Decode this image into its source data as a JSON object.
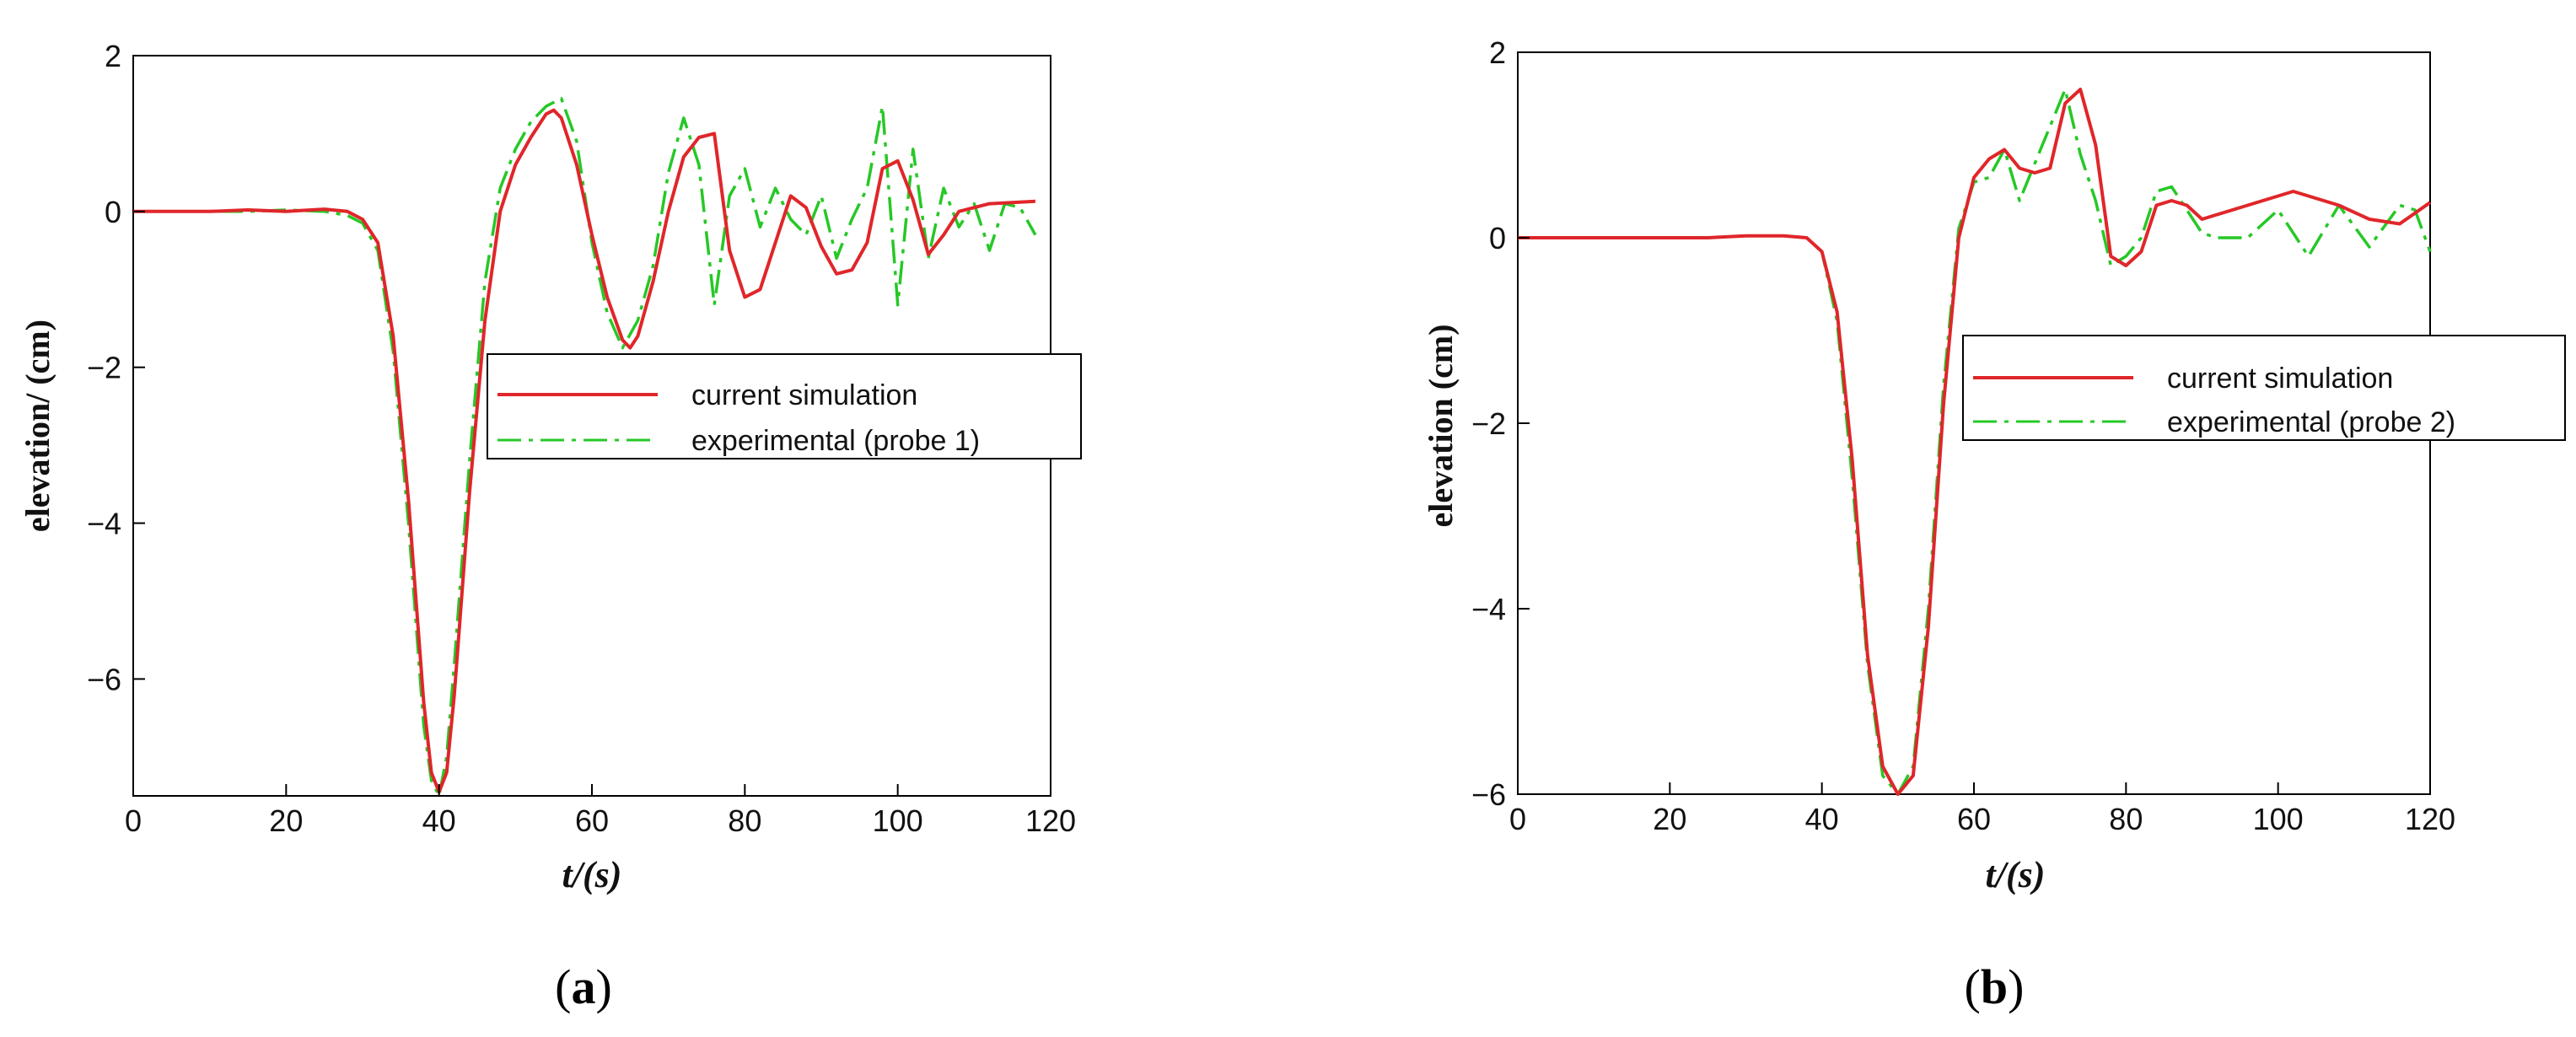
{
  "chart_data": [
    {
      "type": "line",
      "panel_label": "a",
      "xlabel": "t/(s)",
      "ylabel": "elevation/ (cm)",
      "xlim": [
        0,
        120
      ],
      "ylim": [
        -7.5,
        2
      ],
      "xticks": [
        0,
        20,
        40,
        60,
        80,
        100,
        120
      ],
      "yticks": [
        2,
        0,
        -2,
        -4,
        -6
      ],
      "grid": false,
      "legend_position": "middle-right",
      "series": [
        {
          "name": "current simulation",
          "color": "#e0262a",
          "dash": "solid",
          "x": [
            0,
            5,
            10,
            15,
            20,
            25,
            28,
            30,
            32,
            34,
            36,
            38,
            39,
            40,
            41,
            42,
            44,
            46,
            48,
            50,
            52,
            54,
            55,
            56,
            58,
            60,
            62,
            64,
            65,
            66,
            68,
            70,
            72,
            74,
            76,
            78,
            80,
            82,
            84,
            86,
            88,
            90,
            92,
            94,
            96,
            98,
            100,
            102,
            104,
            106,
            108,
            112,
            116,
            118
          ],
          "y": [
            0,
            0,
            0,
            0.02,
            0,
            0.03,
            0,
            -0.1,
            -0.4,
            -1.6,
            -3.7,
            -6.3,
            -7.2,
            -7.45,
            -7.2,
            -6.2,
            -3.6,
            -1.4,
            0,
            0.6,
            0.95,
            1.25,
            1.3,
            1.2,
            0.6,
            -0.3,
            -1.1,
            -1.65,
            -1.75,
            -1.6,
            -0.9,
            0,
            0.7,
            0.95,
            1.0,
            -0.5,
            -1.1,
            -1.0,
            -0.4,
            0.2,
            0.05,
            -0.45,
            -0.8,
            -0.75,
            -0.4,
            0.55,
            0.65,
            0.15,
            -0.55,
            -0.3,
            0.0,
            0.1,
            0.12,
            0.13
          ]
        },
        {
          "name": "experimental (probe 1)",
          "color": "#26c826",
          "dash": "dashdot",
          "x": [
            0,
            5,
            10,
            15,
            20,
            25,
            28,
            30,
            32,
            34,
            36,
            38,
            39,
            40,
            41,
            42,
            44,
            46,
            48,
            50,
            52,
            54,
            56,
            58,
            60,
            62,
            64,
            66,
            68,
            70,
            72,
            74,
            76,
            78,
            80,
            82,
            84,
            86,
            88,
            90,
            92,
            94,
            96,
            98,
            100,
            102,
            104,
            106,
            108,
            110,
            112,
            114,
            116,
            118
          ],
          "y": [
            0,
            0,
            0,
            0,
            0.02,
            0,
            -0.05,
            -0.15,
            -0.5,
            -1.8,
            -4.0,
            -6.6,
            -7.3,
            -7.5,
            -7.0,
            -5.8,
            -3.2,
            -0.9,
            0.3,
            0.8,
            1.15,
            1.35,
            1.45,
            0.9,
            -0.4,
            -1.3,
            -1.75,
            -1.4,
            -0.7,
            0.5,
            1.2,
            0.6,
            -1.2,
            0.2,
            0.55,
            -0.2,
            0.3,
            -0.1,
            -0.3,
            0.2,
            -0.6,
            -0.1,
            0.3,
            1.35,
            -1.2,
            0.8,
            -0.6,
            0.3,
            -0.2,
            0.1,
            -0.5,
            0.1,
            0.05,
            -0.3
          ]
        }
      ]
    },
    {
      "type": "line",
      "panel_label": "b",
      "xlabel": "t/(s)",
      "ylabel": "elevation (cm)",
      "xlim": [
        0,
        120
      ],
      "ylim": [
        -6,
        2
      ],
      "xticks": [
        0,
        20,
        40,
        60,
        80,
        100,
        120
      ],
      "yticks": [
        2,
        0,
        -2,
        -4,
        -6
      ],
      "grid": false,
      "legend_position": "upper-right",
      "series": [
        {
          "name": "current simulation",
          "color": "#e0262a",
          "dash": "solid",
          "x": [
            0,
            5,
            10,
            15,
            20,
            25,
            30,
            35,
            38,
            40,
            42,
            44,
            46,
            48,
            50,
            52,
            54,
            56,
            58,
            60,
            62,
            64,
            66,
            68,
            70,
            72,
            74,
            76,
            78,
            80,
            82,
            84,
            86,
            88,
            90,
            92,
            96,
            100,
            102,
            104,
            108,
            112,
            116,
            120
          ],
          "y": [
            0,
            0,
            0,
            0,
            0,
            0,
            0.02,
            0.02,
            0,
            -0.15,
            -0.8,
            -2.4,
            -4.5,
            -5.7,
            -6.0,
            -5.8,
            -4.2,
            -1.8,
            0,
            0.65,
            0.85,
            0.95,
            0.75,
            0.7,
            0.75,
            1.45,
            1.6,
            1.0,
            -0.2,
            -0.3,
            -0.15,
            0.35,
            0.4,
            0.35,
            0.2,
            0.25,
            0.35,
            0.45,
            0.5,
            0.45,
            0.35,
            0.2,
            0.15,
            0.38
          ]
        },
        {
          "name": "experimental (probe 2)",
          "color": "#26c826",
          "dash": "dashdot",
          "x": [
            0,
            5,
            10,
            15,
            20,
            25,
            30,
            35,
            38,
            40,
            42,
            44,
            46,
            48,
            50,
            52,
            54,
            56,
            58,
            60,
            62,
            64,
            66,
            68,
            70,
            72,
            74,
            76,
            78,
            80,
            82,
            84,
            86,
            88,
            90,
            92,
            96,
            100,
            104,
            108,
            112,
            116,
            118,
            120
          ],
          "y": [
            0,
            0,
            0,
            0,
            0,
            0,
            0.02,
            0.02,
            0,
            -0.15,
            -0.9,
            -2.6,
            -4.6,
            -5.8,
            -6.0,
            -5.7,
            -4.0,
            -1.6,
            0.1,
            0.6,
            0.65,
            0.95,
            0.4,
            0.8,
            1.2,
            1.6,
            0.9,
            0.4,
            -0.3,
            -0.2,
            0.0,
            0.5,
            0.55,
            0.3,
            0.05,
            0.0,
            0.0,
            0.3,
            -0.2,
            0.35,
            -0.1,
            0.35,
            0.3,
            -0.15
          ]
        }
      ]
    }
  ]
}
